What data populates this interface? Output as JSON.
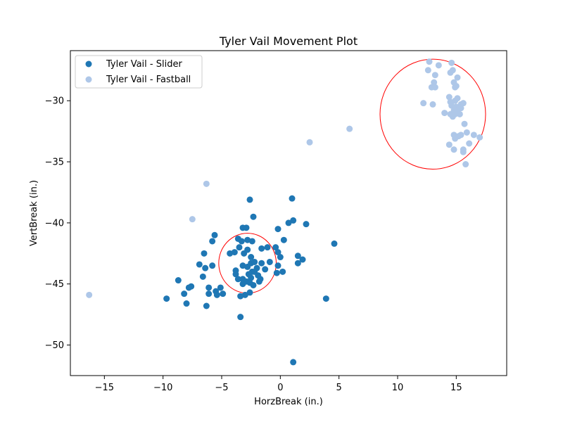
{
  "chart_data": {
    "type": "scatter",
    "title": "Tyler Vail Movement Plot",
    "xlabel": "HorzBreak (in.)",
    "ylabel": "VertBreak (in.)",
    "xlim": [
      -17.9,
      19.3
    ],
    "ylim": [
      -52.5,
      -25.9
    ],
    "xticks": [
      -15,
      -10,
      -5,
      0,
      5,
      10,
      15
    ],
    "yticks": [
      -50,
      -45,
      -40,
      -35,
      -30
    ],
    "grid": false,
    "legend_position": "top-left",
    "series": [
      {
        "name": "Tyler Vail - Slider",
        "color": "#1f77b4",
        "points": [
          [
            -3.2,
            -40.4
          ],
          [
            -2.9,
            -40.4
          ],
          [
            -2.6,
            -38.1
          ],
          [
            -2.3,
            -39.5
          ],
          [
            -0.2,
            -40.5
          ],
          [
            0.7,
            -40.0
          ],
          [
            1.0,
            -38.0
          ],
          [
            1.1,
            -39.8
          ],
          [
            2.2,
            -40.1
          ],
          [
            -5.8,
            -41.5
          ],
          [
            -5.6,
            -41.0
          ],
          [
            -3.6,
            -41.3
          ],
          [
            -3.3,
            -41.5
          ],
          [
            -2.8,
            -41.4
          ],
          [
            -2.4,
            -41.5
          ],
          [
            0.3,
            -41.4
          ],
          [
            4.6,
            -41.7
          ],
          [
            -6.5,
            -42.5
          ],
          [
            -4.3,
            -42.5
          ],
          [
            -3.9,
            -42.4
          ],
          [
            -3.5,
            -42.0
          ],
          [
            -3.1,
            -42.5
          ],
          [
            -2.8,
            -42.2
          ],
          [
            -1.6,
            -42.1
          ],
          [
            -1.1,
            -42.0
          ],
          [
            -0.4,
            -42.0
          ],
          [
            -0.2,
            -42.4
          ],
          [
            0.0,
            -42.8
          ],
          [
            1.5,
            -42.7
          ],
          [
            1.9,
            -43.0
          ],
          [
            -6.9,
            -43.4
          ],
          [
            -6.4,
            -43.7
          ],
          [
            -5.8,
            -43.5
          ],
          [
            -3.8,
            -43.9
          ],
          [
            -3.2,
            -43.5
          ],
          [
            -2.8,
            -43.6
          ],
          [
            -2.5,
            -42.8
          ],
          [
            -2.5,
            -43.3
          ],
          [
            -2.4,
            -44.0
          ],
          [
            -2.2,
            -43.2
          ],
          [
            -2.0,
            -43.7
          ],
          [
            -1.6,
            -43.3
          ],
          [
            -1.3,
            -43.8
          ],
          [
            -0.9,
            -43.2
          ],
          [
            -0.2,
            -43.5
          ],
          [
            1.5,
            -43.3
          ],
          [
            -3.8,
            -44.2
          ],
          [
            -3.6,
            -44.6
          ],
          [
            -3.2,
            -44.6
          ],
          [
            -2.9,
            -44.8
          ],
          [
            -2.7,
            -44.2
          ],
          [
            -2.5,
            -44.5
          ],
          [
            -2.2,
            -44.0
          ],
          [
            -1.9,
            -44.3
          ],
          [
            -1.7,
            -44.6
          ],
          [
            -0.3,
            -44.1
          ],
          [
            0.2,
            -44.0
          ],
          [
            -8.7,
            -44.7
          ],
          [
            -6.6,
            -44.4
          ],
          [
            -3.2,
            -45.0
          ],
          [
            -2.6,
            -44.9
          ],
          [
            -2.3,
            -45.1
          ],
          [
            -1.8,
            -44.8
          ],
          [
            -7.6,
            -45.2
          ],
          [
            -7.8,
            -45.3
          ],
          [
            -6.1,
            -45.3
          ],
          [
            -5.5,
            -45.6
          ],
          [
            -5.1,
            -45.3
          ],
          [
            -8.2,
            -45.8
          ],
          [
            -6.1,
            -45.8
          ],
          [
            -5.4,
            -45.9
          ],
          [
            -4.9,
            -45.8
          ],
          [
            -2.6,
            -45.7
          ],
          [
            -3.0,
            -45.9
          ],
          [
            -3.4,
            -46.0
          ],
          [
            -9.7,
            -46.2
          ],
          [
            -8.0,
            -46.6
          ],
          [
            -6.3,
            -46.8
          ],
          [
            3.9,
            -46.2
          ],
          [
            -3.4,
            -47.7
          ],
          [
            1.1,
            -51.4
          ]
        ]
      },
      {
        "name": "Tyler Vail - Fastball",
        "color": "#aec7e8",
        "points": [
          [
            -16.3,
            -45.9
          ],
          [
            -7.5,
            -39.7
          ],
          [
            -6.3,
            -36.8
          ],
          [
            2.5,
            -33.4
          ],
          [
            5.9,
            -32.3
          ],
          [
            12.7,
            -26.8
          ],
          [
            14.6,
            -26.9
          ],
          [
            13.5,
            -27.1
          ],
          [
            12.6,
            -27.5
          ],
          [
            14.5,
            -27.7
          ],
          [
            14.7,
            -27.5
          ],
          [
            13.2,
            -27.9
          ],
          [
            15.1,
            -28.1
          ],
          [
            13.1,
            -28.5
          ],
          [
            14.8,
            -28.5
          ],
          [
            12.9,
            -28.9
          ],
          [
            13.2,
            -28.9
          ],
          [
            14.9,
            -28.9
          ],
          [
            15.0,
            -28.8
          ],
          [
            12.2,
            -30.2
          ],
          [
            13.0,
            -30.3
          ],
          [
            14.4,
            -29.7
          ],
          [
            14.5,
            -30.1
          ],
          [
            14.9,
            -30.0
          ],
          [
            15.1,
            -29.8
          ],
          [
            14.6,
            -30.4
          ],
          [
            15.0,
            -30.5
          ],
          [
            15.4,
            -30.3
          ],
          [
            15.6,
            -30.2
          ],
          [
            14.8,
            -30.8
          ],
          [
            15.1,
            -30.8
          ],
          [
            15.4,
            -30.6
          ],
          [
            14.0,
            -31.0
          ],
          [
            14.5,
            -31.1
          ],
          [
            14.7,
            -31.3
          ],
          [
            14.9,
            -31.1
          ],
          [
            15.3,
            -31.1
          ],
          [
            15.7,
            -31.9
          ],
          [
            14.8,
            -32.8
          ],
          [
            15.2,
            -32.9
          ],
          [
            15.4,
            -32.8
          ],
          [
            15.9,
            -32.6
          ],
          [
            16.5,
            -32.8
          ],
          [
            14.9,
            -33.1
          ],
          [
            16.1,
            -33.5
          ],
          [
            14.4,
            -33.6
          ],
          [
            15.6,
            -34.0
          ],
          [
            15.6,
            -34.2
          ],
          [
            14.8,
            -34.0
          ],
          [
            17.0,
            -33.0
          ],
          [
            15.8,
            -35.2
          ]
        ]
      }
    ],
    "circles": [
      {
        "cx": -2.8,
        "cy": -43.3,
        "r": 2.45,
        "color": "#ff0000"
      },
      {
        "cx": 13.0,
        "cy": -31.1,
        "r": 4.5,
        "color": "#ff0000"
      }
    ]
  }
}
